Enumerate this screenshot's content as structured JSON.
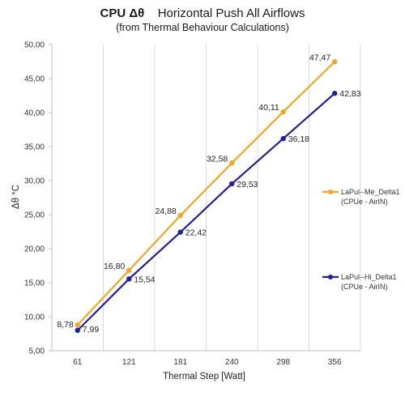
{
  "chart_data": {
    "type": "line",
    "title_bold": "CPU  Δθ",
    "title_rest": "Horizontal Push All Airflows",
    "subtitle": "(from Thermal Behaviour Calculations)",
    "xlabel": "Thermal Step [Watt]",
    "ylabel": "Δθ °C",
    "categories": [
      "61",
      "121",
      "181",
      "240",
      "298",
      "356"
    ],
    "ylim": [
      5,
      50
    ],
    "yticks": [
      "5,00",
      "10,00",
      "15,00",
      "20,00",
      "25,00",
      "30,00",
      "35,00",
      "40,00",
      "45,00",
      "50,00"
    ],
    "grid": "vertical",
    "legend_position": "right",
    "series": [
      {
        "name_line1": "LaPul--Me_Delta1",
        "name_line2": "(CPUe - AirIN)",
        "color": "#f5a623",
        "values": [
          8.78,
          16.8,
          24.88,
          32.58,
          40.11,
          47.47
        ],
        "labels": [
          "8,78",
          "16,80",
          "24,88",
          "32,58",
          "40,11",
          "47,47"
        ]
      },
      {
        "name_line1": "LaPul--Hi_Delta1",
        "name_line2": "(CPUe - AirIN)",
        "color": "#1f1fa0",
        "values": [
          7.99,
          15.54,
          22.42,
          29.53,
          36.18,
          42.83
        ],
        "labels": [
          "7,99",
          "15,54",
          "22,42",
          "29,53",
          "36,18",
          "42,83"
        ]
      }
    ]
  }
}
